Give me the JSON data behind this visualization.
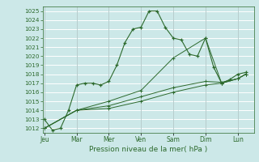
{
  "bg_color": "#cce8e8",
  "grid_color": "#ffffff",
  "line_color": "#2d6a2d",
  "xlabel": "Pression niveau de la mer( hPa )",
  "ylim": [
    1011.5,
    1025.5
  ],
  "yticks": [
    1012,
    1013,
    1014,
    1015,
    1016,
    1017,
    1018,
    1019,
    1020,
    1021,
    1022,
    1023,
    1024,
    1025
  ],
  "day_labels": [
    "Jeu",
    "Mar",
    "Mer",
    "Ven",
    "Sam",
    "Dim",
    "Lun"
  ],
  "day_positions": [
    0,
    2,
    4,
    6,
    8,
    10,
    12
  ],
  "xlim": [
    -0.1,
    13.0
  ],
  "series": [
    {
      "x": [
        0,
        0.5,
        1,
        1.5,
        2,
        2.5,
        3,
        3.5,
        4,
        4.5,
        5,
        5.5,
        6,
        6.5,
        7,
        7.5,
        8,
        8.5,
        9,
        9.5,
        10,
        10.5,
        11,
        11.5,
        12,
        12.5
      ],
      "y": [
        1013.0,
        1011.8,
        1012.0,
        1014.0,
        1016.8,
        1017.0,
        1017.0,
        1016.8,
        1017.2,
        1019.0,
        1021.5,
        1023.0,
        1023.2,
        1025.0,
        1025.0,
        1023.2,
        1022.0,
        1021.8,
        1020.2,
        1020.0,
        1022.0,
        1018.8,
        1017.0,
        1017.4,
        1018.0,
        1018.2
      ]
    },
    {
      "x": [
        0,
        2,
        4,
        6,
        8,
        10,
        11,
        12,
        12.5
      ],
      "y": [
        1012.0,
        1014.0,
        1015.0,
        1016.2,
        1019.8,
        1022.0,
        1017.0,
        1017.5,
        1018.0
      ]
    },
    {
      "x": [
        0,
        2,
        4,
        6,
        8,
        10,
        11,
        12,
        12.5
      ],
      "y": [
        1012.0,
        1014.0,
        1014.5,
        1015.5,
        1016.5,
        1017.2,
        1017.1,
        1017.5,
        1018.0
      ]
    },
    {
      "x": [
        0,
        2,
        4,
        6,
        8,
        10,
        11,
        12,
        12.5
      ],
      "y": [
        1012.0,
        1014.0,
        1014.2,
        1015.0,
        1016.0,
        1016.8,
        1017.0,
        1017.5,
        1018.0
      ]
    }
  ]
}
